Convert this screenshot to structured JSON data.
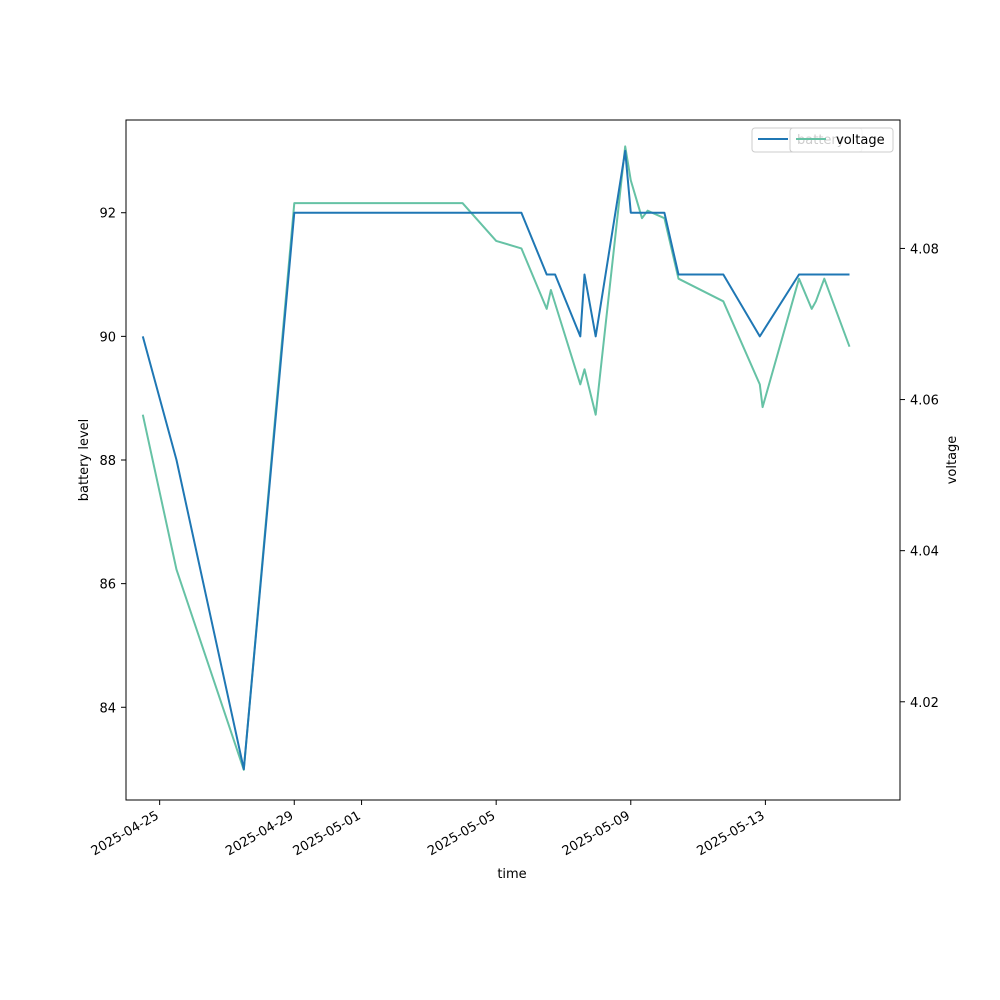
{
  "chart_data": {
    "type": "line",
    "xlabel": "time",
    "ylabel_left": "battery level",
    "ylabel_right": "voltage",
    "x_ticks": [
      "2025-04-25",
      "2025-04-29",
      "2025-05-01",
      "2025-05-05",
      "2025-05-09",
      "2025-05-13"
    ],
    "y_left_ticks": [
      84,
      86,
      88,
      90,
      92
    ],
    "y_right_ticks": [
      4.02,
      4.04,
      4.06,
      4.08
    ],
    "y_left_range": [
      82.5,
      93.5
    ],
    "y_right_range": [
      4.007,
      4.097
    ],
    "x_range": [
      "2025-04-24T00:00",
      "2025-05-17T00:00"
    ],
    "grid": false,
    "legend_position": "top-right",
    "colors": {
      "battery": "#1f77b4",
      "voltage": "#66c2a5"
    },
    "series": [
      {
        "name": "battery",
        "axis": "left",
        "x": [
          "2025-04-24T12:00",
          "2025-04-25T12:00",
          "2025-04-27T12:00",
          "2025-04-29T00:00",
          "2025-05-04T00:00",
          "2025-05-05T00:00",
          "2025-05-05T18:00",
          "2025-05-06T12:00",
          "2025-05-06T18:00",
          "2025-05-07T12:00",
          "2025-05-07T15:00",
          "2025-05-07T23:00",
          "2025-05-08T20:00",
          "2025-05-09T00:00",
          "2025-05-10T00:00",
          "2025-05-10T10:00",
          "2025-05-11T18:00",
          "2025-05-12T20:00",
          "2025-05-14T00:00",
          "2025-05-15T12:00"
        ],
        "y": [
          90,
          88,
          83,
          92,
          92,
          92,
          92,
          91,
          91,
          90,
          91,
          90,
          93,
          92,
          92,
          91,
          91,
          90,
          91,
          91
        ]
      },
      {
        "name": "voltage",
        "axis": "right",
        "x": [
          "2025-04-24T12:00",
          "2025-04-25T12:00",
          "2025-04-27T12:00",
          "2025-04-29T00:00",
          "2025-05-04T00:00",
          "2025-05-05T00:00",
          "2025-05-05T18:00",
          "2025-05-06T12:00",
          "2025-05-06T15:00",
          "2025-05-07T12:00",
          "2025-05-07T15:00",
          "2025-05-07T23:00",
          "2025-05-08T20:00",
          "2025-05-09T00:00",
          "2025-05-09T08:00",
          "2025-05-09T12:00",
          "2025-05-10T00:00",
          "2025-05-10T10:00",
          "2025-05-11T18:00",
          "2025-05-12T20:00",
          "2025-05-12T22:00",
          "2025-05-14T00:00",
          "2025-05-14T09:00",
          "2025-05-14T12:00",
          "2025-05-14T18:00",
          "2025-05-15T12:00"
        ],
        "y": [
          4.058,
          4.0375,
          4.011,
          4.086,
          4.086,
          4.081,
          4.08,
          4.072,
          4.0745,
          4.062,
          4.064,
          4.058,
          4.0935,
          4.089,
          4.084,
          4.085,
          4.084,
          4.076,
          4.073,
          4.062,
          4.059,
          4.076,
          4.072,
          4.073,
          4.076,
          4.067
        ]
      }
    ]
  }
}
